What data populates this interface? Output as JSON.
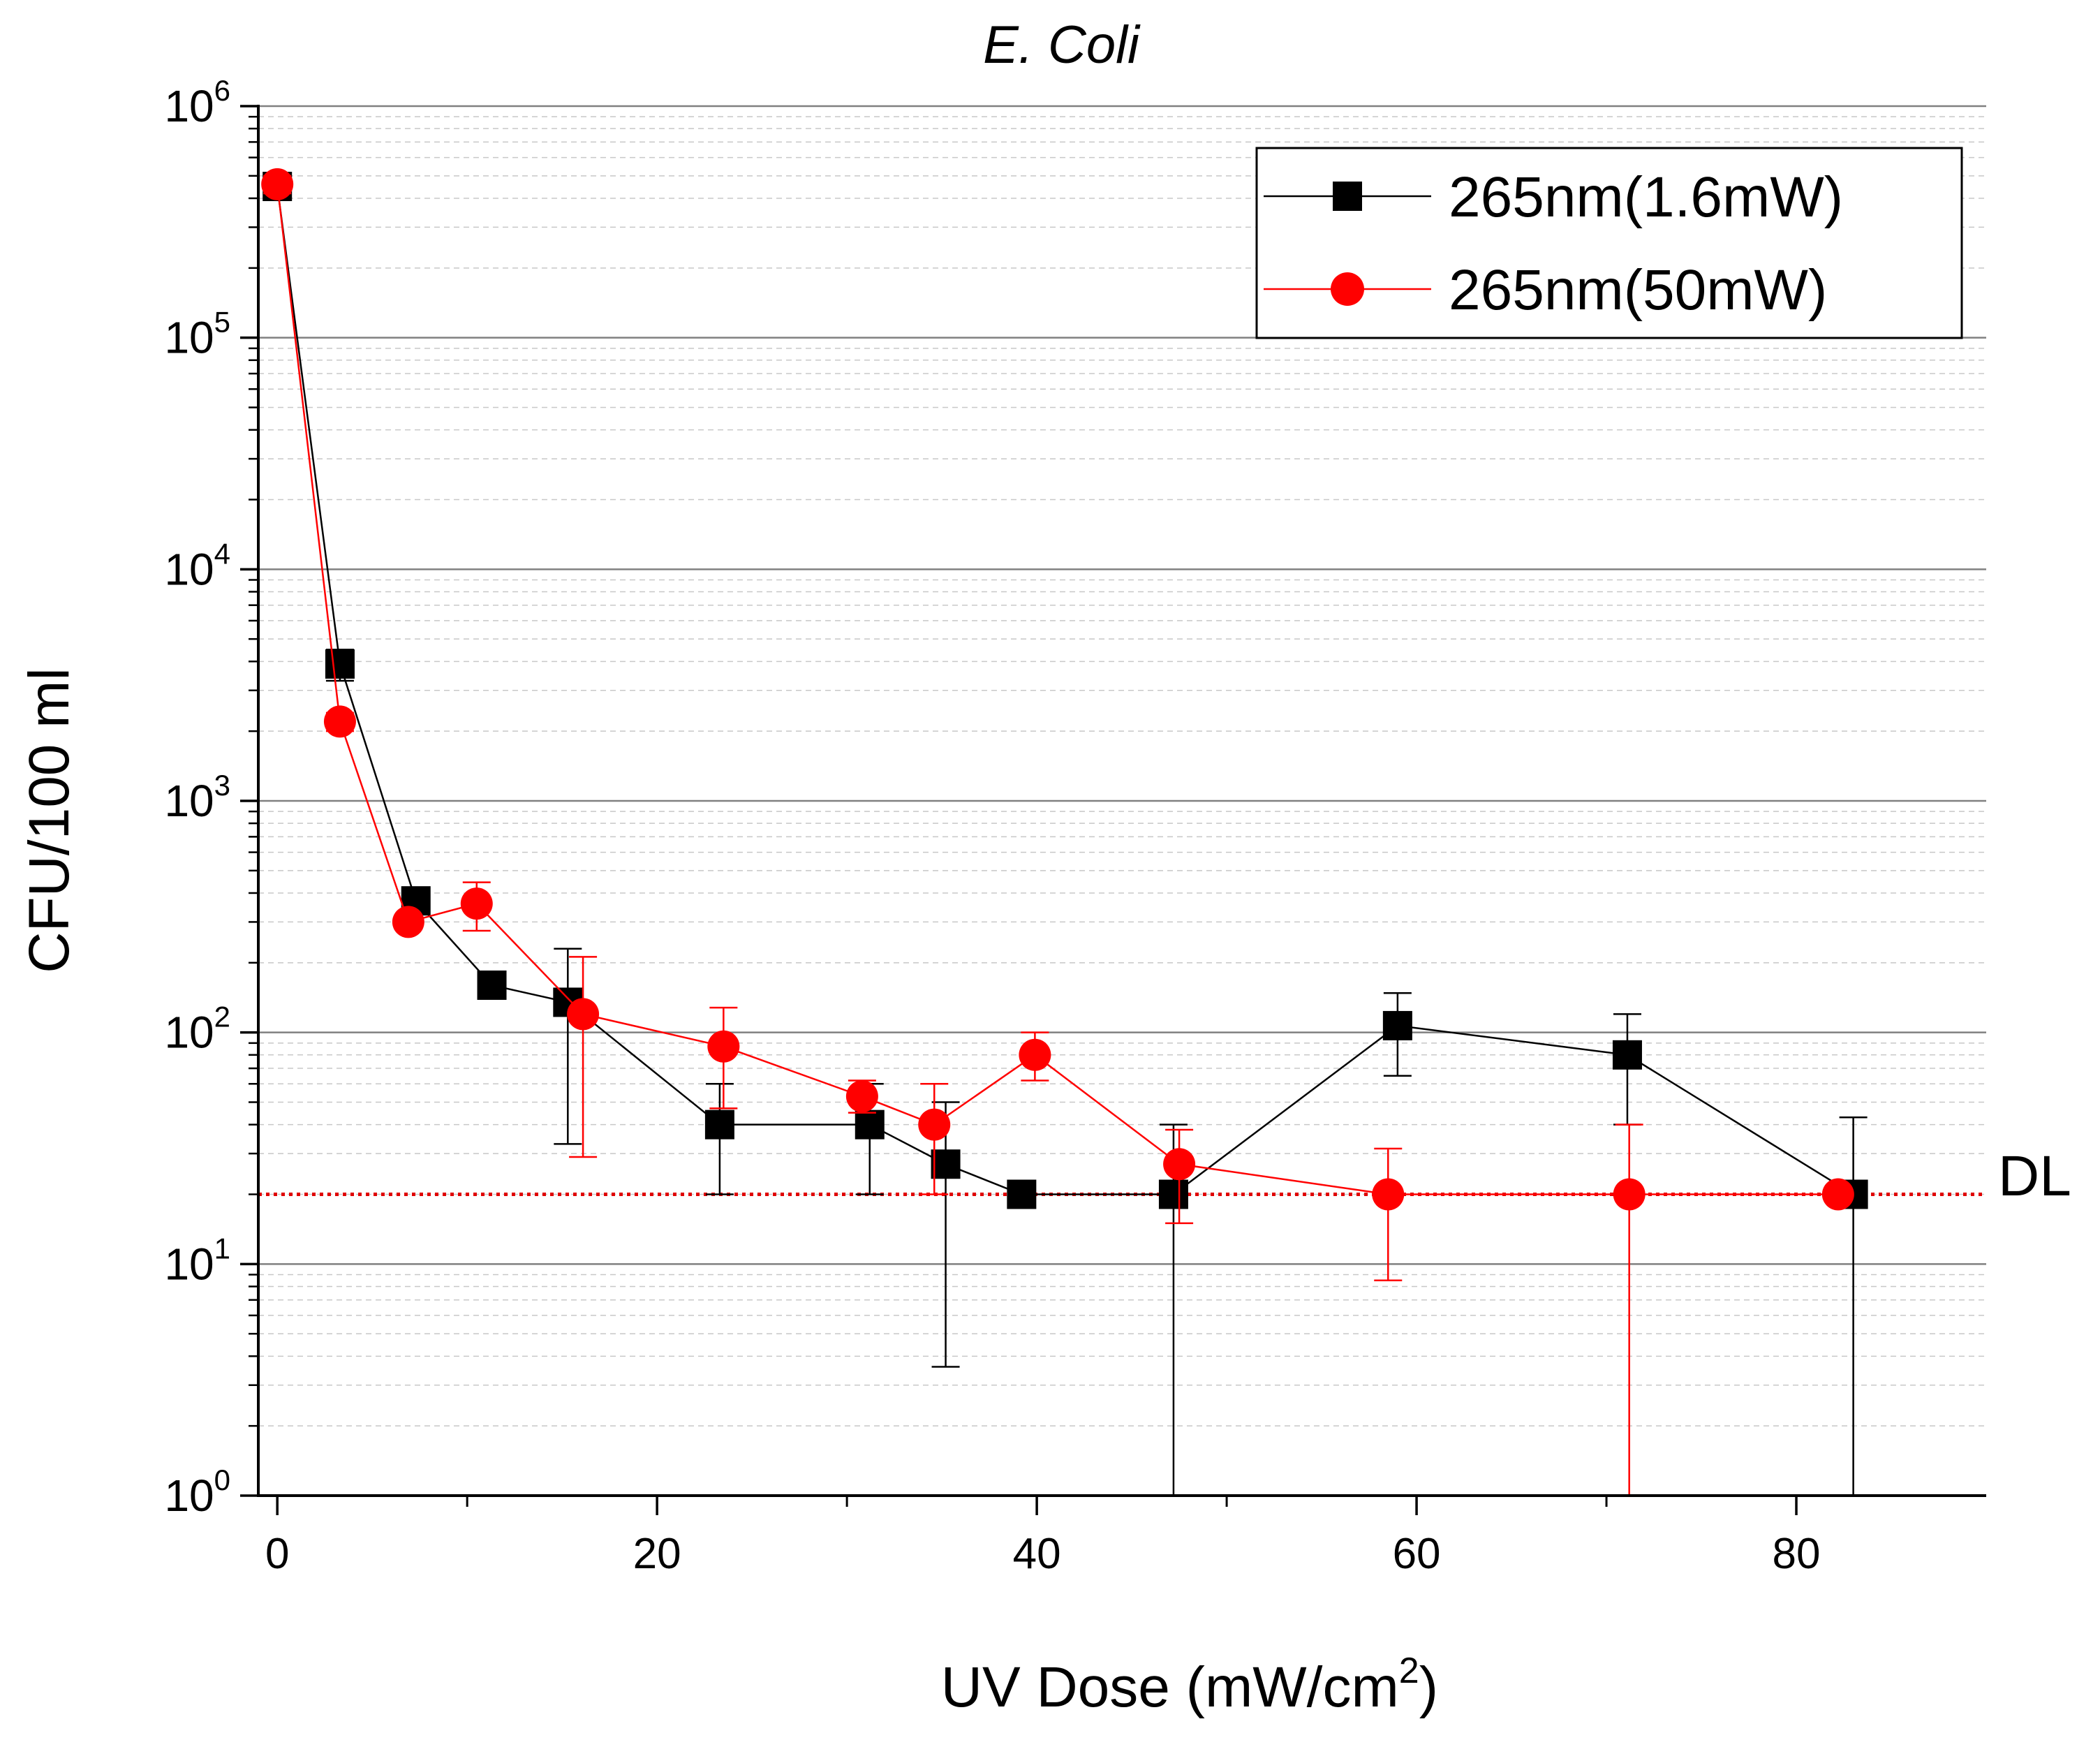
{
  "chart_data": {
    "type": "scatter",
    "title": "E. Coli",
    "xlabel": "UV Dose (mW/cm",
    "xlabel_sup": "2",
    "xlabel_end": ")",
    "ylabel": "CFU/100 ml",
    "yscale": "log",
    "xlim": [
      -1,
      90
    ],
    "ylim": [
      1,
      1000000
    ],
    "x_ticks": [
      0,
      20,
      40,
      60,
      80
    ],
    "x_tick_labels": [
      "0",
      "20",
      "40",
      "60",
      "80"
    ],
    "y_tick_base": "10",
    "y_ticks": [
      {
        "value": 1,
        "exp": "0"
      },
      {
        "value": 10,
        "exp": "1"
      },
      {
        "value": 100,
        "exp": "2"
      },
      {
        "value": 1000,
        "exp": "3"
      },
      {
        "value": 10000,
        "exp": "4"
      },
      {
        "value": 100000,
        "exp": "5"
      },
      {
        "value": 1000000,
        "exp": "6"
      }
    ],
    "detection_limit": {
      "value": 20,
      "label": "DL",
      "color": "#e00000"
    },
    "legend_position": "top-right",
    "series": [
      {
        "name": "265nm(1.6mW)",
        "color": "#000000",
        "marker": "square",
        "x": [
          0,
          3.3,
          7.3,
          11.3,
          15.3,
          23.3,
          31.2,
          35.2,
          39.2,
          47.2,
          59,
          71.1,
          83
        ],
        "y": [
          450000,
          3900,
          370,
          160,
          135,
          40,
          40,
          27,
          20,
          20,
          107,
          80,
          20
        ],
        "err_low": [
          400000,
          3300,
          330,
          140,
          33,
          20,
          20,
          3.6,
          20,
          1,
          65,
          40,
          1
        ],
        "err_high": [
          500000,
          4500,
          410,
          180,
          230,
          60,
          60,
          50,
          20,
          40,
          148,
          120,
          43
        ]
      },
      {
        "name": "265nm(50mW)",
        "color": "#ff0000",
        "marker": "circle",
        "x": [
          0,
          3.3,
          6.9,
          10.5,
          16.1,
          23.5,
          30.8,
          34.6,
          39.9,
          47.5,
          58.5,
          71.2,
          82.2
        ],
        "y": [
          460000,
          2200,
          300,
          360,
          120,
          87,
          53,
          40,
          80,
          27,
          20,
          20,
          20
        ],
        "err_low": [
          420000,
          2000,
          280,
          275,
          29,
          47,
          45,
          20,
          62,
          15,
          8.5,
          1,
          20
        ],
        "err_high": [
          500000,
          2400,
          320,
          445,
          212,
          128,
          62,
          60,
          100,
          38,
          31.5,
          40,
          20
        ]
      }
    ]
  }
}
